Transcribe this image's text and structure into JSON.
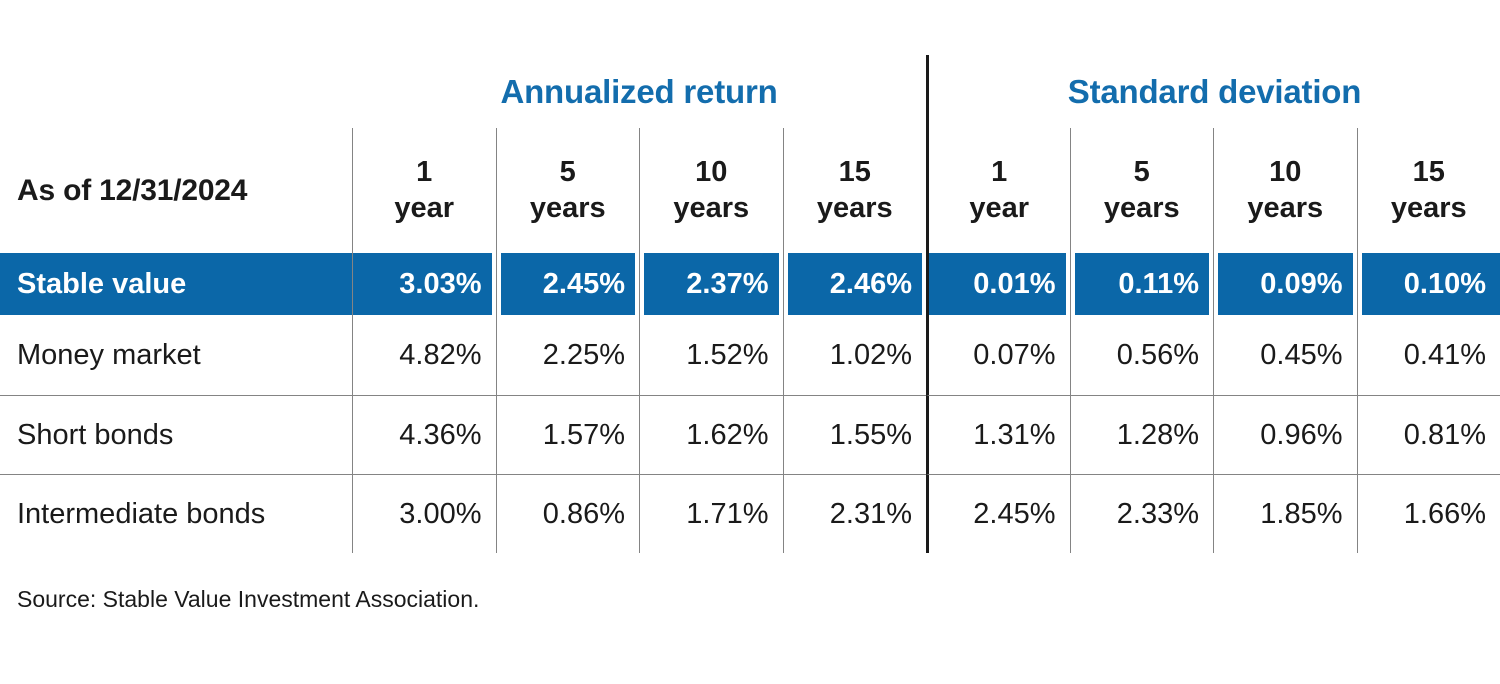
{
  "chart_data": {
    "type": "table",
    "as_of_label": "As of 12/31/2024",
    "column_groups": [
      {
        "label": "Annualized return",
        "span": 4
      },
      {
        "label": "Standard deviation",
        "span": 4
      }
    ],
    "columns": [
      {
        "line1": "1",
        "line2": "year"
      },
      {
        "line1": "5",
        "line2": "years"
      },
      {
        "line1": "10",
        "line2": "years"
      },
      {
        "line1": "15",
        "line2": "years"
      },
      {
        "line1": "1",
        "line2": "year"
      },
      {
        "line1": "5",
        "line2": "years"
      },
      {
        "line1": "10",
        "line2": "years"
      },
      {
        "line1": "15",
        "line2": "years"
      }
    ],
    "rows": [
      {
        "label": "Stable value",
        "highlight": true,
        "values": [
          "3.03%",
          "2.45%",
          "2.37%",
          "2.46%",
          "0.01%",
          "0.11%",
          "0.09%",
          "0.10%"
        ]
      },
      {
        "label": "Money market",
        "highlight": false,
        "values": [
          "4.82%",
          "2.25%",
          "1.52%",
          "1.02%",
          "0.07%",
          "0.56%",
          "0.45%",
          "0.41%"
        ]
      },
      {
        "label": "Short bonds",
        "highlight": false,
        "values": [
          "4.36%",
          "1.57%",
          "1.62%",
          "1.55%",
          "1.31%",
          "1.28%",
          "0.96%",
          "0.81%"
        ]
      },
      {
        "label": "Intermediate bonds",
        "highlight": false,
        "values": [
          "3.00%",
          "0.86%",
          "1.71%",
          "2.31%",
          "2.45%",
          "2.33%",
          "1.85%",
          "1.66%"
        ]
      }
    ],
    "source": "Source: Stable Value Investment Association."
  },
  "colors": {
    "accent_blue": "#0b67a8",
    "header_text_blue": "#136dad",
    "grid_line": "#848484",
    "divider_black": "#1a1a1a",
    "text": "#1a1a1a",
    "highlight_text": "#ffffff"
  }
}
